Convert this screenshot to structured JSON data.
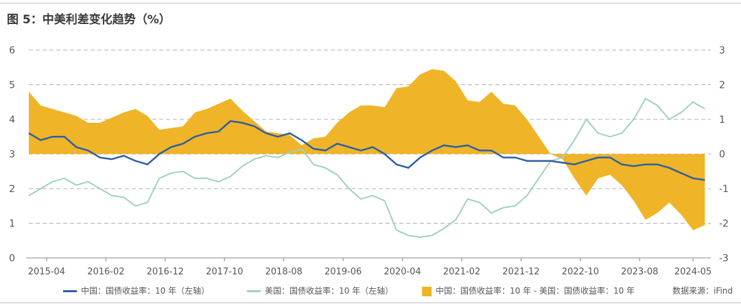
{
  "title": "图 5：中美利差变化趋势（%）",
  "source": "数据来源：iFind",
  "colors": {
    "cn": "#2e5fa3",
    "us": "#9fd1bf",
    "spread": "#f0b428",
    "grid": "#b0b0b0",
    "text": "#555555"
  },
  "legend": [
    {
      "label": "中国：国债收益率：10 年（左轴）",
      "kind": "line",
      "color": "#2e5fa3"
    },
    {
      "label": "美国：国债收益率：10 年（左轴）",
      "kind": "line",
      "color": "#9fd1bf"
    },
    {
      "label": "中国：国债收益率：10 年 - 美国：国债收益率：10 年",
      "kind": "area",
      "color": "#f0b428"
    }
  ],
  "chart_data": {
    "type": "line",
    "x_type": "date",
    "x_tick_labels": [
      "2015-04",
      "2016-02",
      "2016-12",
      "2017-10",
      "2018-08",
      "2019-06",
      "2020-04",
      "2021-02",
      "2021-12",
      "2022-10",
      "2023-08",
      "2024-05"
    ],
    "x_range": [
      "2015-01",
      "2024-08"
    ],
    "y_left": {
      "ticks": [
        0,
        1,
        2,
        3,
        4,
        5,
        6
      ],
      "range": [
        0,
        6
      ]
    },
    "y_right": {
      "ticks": [
        -3,
        -2,
        -1,
        0,
        1,
        2,
        3
      ],
      "range": [
        -3,
        3
      ]
    },
    "grid": "horizontal dashed",
    "legend_position": "bottom",
    "series": [
      {
        "name": "中国：国债收益率：10 年（左轴）",
        "axis": "left",
        "type": "line",
        "x": [
          "2015-01",
          "2015-03",
          "2015-05",
          "2015-07",
          "2015-09",
          "2015-11",
          "2016-01",
          "2016-03",
          "2016-05",
          "2016-07",
          "2016-09",
          "2016-11",
          "2017-01",
          "2017-03",
          "2017-05",
          "2017-07",
          "2017-09",
          "2017-11",
          "2018-01",
          "2018-03",
          "2018-05",
          "2018-07",
          "2018-09",
          "2018-11",
          "2019-01",
          "2019-03",
          "2019-05",
          "2019-07",
          "2019-09",
          "2019-11",
          "2020-01",
          "2020-03",
          "2020-05",
          "2020-07",
          "2020-09",
          "2020-11",
          "2021-01",
          "2021-03",
          "2021-05",
          "2021-07",
          "2021-09",
          "2021-11",
          "2022-01",
          "2022-03",
          "2022-05",
          "2022-07",
          "2022-09",
          "2022-11",
          "2023-01",
          "2023-03",
          "2023-05",
          "2023-07",
          "2023-09",
          "2023-11",
          "2024-01",
          "2024-03",
          "2024-05",
          "2024-07"
        ],
        "values": [
          3.6,
          3.4,
          3.5,
          3.5,
          3.2,
          3.1,
          2.9,
          2.85,
          2.95,
          2.8,
          2.7,
          3.0,
          3.2,
          3.3,
          3.5,
          3.6,
          3.65,
          3.95,
          3.9,
          3.8,
          3.6,
          3.5,
          3.6,
          3.4,
          3.15,
          3.1,
          3.3,
          3.2,
          3.1,
          3.2,
          3.0,
          2.7,
          2.6,
          2.9,
          3.1,
          3.25,
          3.2,
          3.25,
          3.1,
          3.1,
          2.9,
          2.9,
          2.8,
          2.8,
          2.8,
          2.75,
          2.7,
          2.8,
          2.9,
          2.9,
          2.7,
          2.65,
          2.7,
          2.7,
          2.6,
          2.45,
          2.3,
          2.25
        ]
      },
      {
        "name": "美国：国债收益率：10 年（左轴）",
        "axis": "left",
        "type": "line",
        "x": [
          "2015-01",
          "2015-03",
          "2015-05",
          "2015-07",
          "2015-09",
          "2015-11",
          "2016-01",
          "2016-03",
          "2016-05",
          "2016-07",
          "2016-09",
          "2016-11",
          "2017-01",
          "2017-03",
          "2017-05",
          "2017-07",
          "2017-09",
          "2017-11",
          "2018-01",
          "2018-03",
          "2018-05",
          "2018-07",
          "2018-09",
          "2018-11",
          "2019-01",
          "2019-03",
          "2019-05",
          "2019-07",
          "2019-09",
          "2019-11",
          "2020-01",
          "2020-03",
          "2020-05",
          "2020-07",
          "2020-09",
          "2020-11",
          "2021-01",
          "2021-03",
          "2021-05",
          "2021-07",
          "2021-09",
          "2021-11",
          "2022-01",
          "2022-03",
          "2022-05",
          "2022-07",
          "2022-09",
          "2022-11",
          "2023-01",
          "2023-03",
          "2023-05",
          "2023-07",
          "2023-09",
          "2023-11",
          "2024-01",
          "2024-03",
          "2024-05",
          "2024-07"
        ],
        "values": [
          1.8,
          2.0,
          2.2,
          2.3,
          2.1,
          2.2,
          2.0,
          1.8,
          1.75,
          1.5,
          1.6,
          2.3,
          2.45,
          2.5,
          2.3,
          2.3,
          2.2,
          2.35,
          2.65,
          2.85,
          2.95,
          2.9,
          3.05,
          3.15,
          2.7,
          2.6,
          2.4,
          2.0,
          1.7,
          1.8,
          1.65,
          0.8,
          0.65,
          0.6,
          0.65,
          0.85,
          1.1,
          1.7,
          1.6,
          1.3,
          1.45,
          1.5,
          1.8,
          2.3,
          2.8,
          2.9,
          3.4,
          4.0,
          3.6,
          3.5,
          3.6,
          4.0,
          4.6,
          4.4,
          4.0,
          4.2,
          4.5,
          4.3
        ]
      },
      {
        "name": "中国：国债收益率：10 年 - 美国：国债收益率：10 年",
        "axis": "right",
        "type": "area",
        "x": [
          "2015-01",
          "2015-03",
          "2015-05",
          "2015-07",
          "2015-09",
          "2015-11",
          "2016-01",
          "2016-03",
          "2016-05",
          "2016-07",
          "2016-09",
          "2016-11",
          "2017-01",
          "2017-03",
          "2017-05",
          "2017-07",
          "2017-09",
          "2017-11",
          "2018-01",
          "2018-03",
          "2018-05",
          "2018-07",
          "2018-09",
          "2018-11",
          "2019-01",
          "2019-03",
          "2019-05",
          "2019-07",
          "2019-09",
          "2019-11",
          "2020-01",
          "2020-03",
          "2020-05",
          "2020-07",
          "2020-09",
          "2020-11",
          "2021-01",
          "2021-03",
          "2021-05",
          "2021-07",
          "2021-09",
          "2021-11",
          "2022-01",
          "2022-03",
          "2022-05",
          "2022-07",
          "2022-09",
          "2022-11",
          "2023-01",
          "2023-03",
          "2023-05",
          "2023-07",
          "2023-09",
          "2023-11",
          "2024-01",
          "2024-03",
          "2024-05",
          "2024-07"
        ],
        "values": [
          1.8,
          1.4,
          1.3,
          1.2,
          1.1,
          0.9,
          0.9,
          1.05,
          1.2,
          1.3,
          1.1,
          0.7,
          0.75,
          0.8,
          1.2,
          1.3,
          1.45,
          1.6,
          1.25,
          0.95,
          0.65,
          0.6,
          0.55,
          0.25,
          0.45,
          0.5,
          0.9,
          1.2,
          1.4,
          1.4,
          1.35,
          1.9,
          1.95,
          2.3,
          2.45,
          2.4,
          2.1,
          1.55,
          1.5,
          1.8,
          1.45,
          1.4,
          1.0,
          0.5,
          0.0,
          -0.15,
          -0.7,
          -1.2,
          -0.7,
          -0.6,
          -0.9,
          -1.35,
          -1.9,
          -1.7,
          -1.4,
          -1.75,
          -2.2,
          -2.05
        ]
      }
    ]
  }
}
